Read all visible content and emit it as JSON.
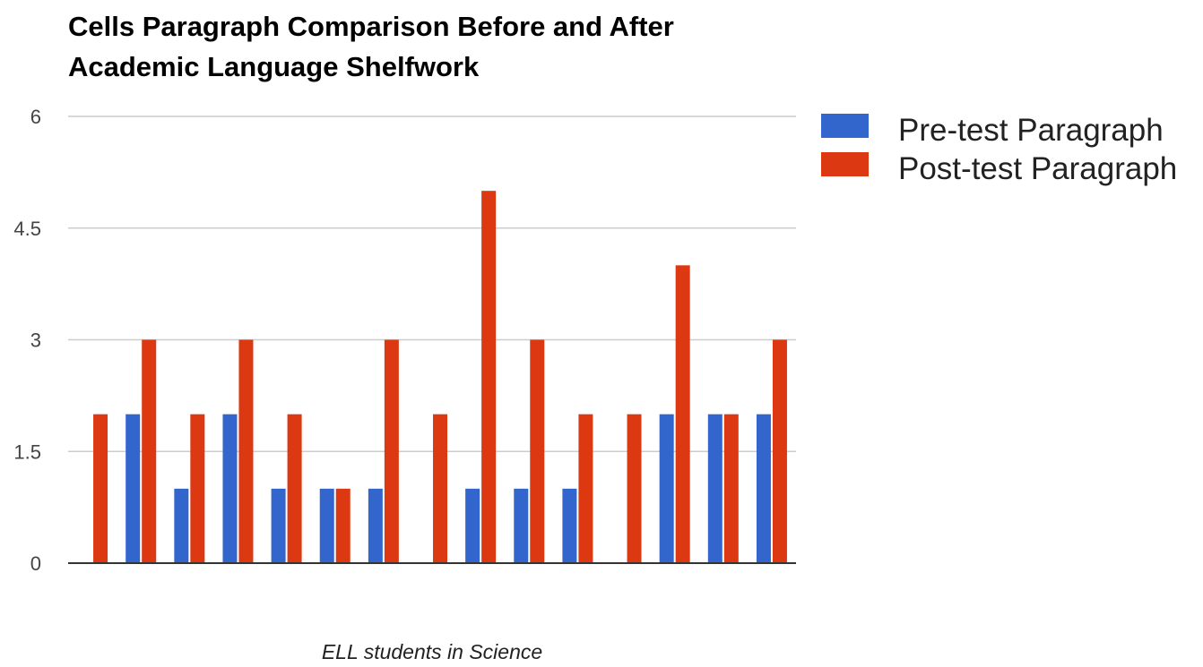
{
  "chart_data": {
    "type": "bar",
    "title_lines": [
      "Cells Paragraph Comparison Before and After",
      "Academic Language Shelfwork"
    ],
    "xlabel": "ELL students in Science",
    "ylabel": "",
    "ylim": [
      0,
      6
    ],
    "yticks": [
      {
        "value": 0,
        "label": "0"
      },
      {
        "value": 1.5,
        "label": "1.5"
      },
      {
        "value": 3,
        "label": "3"
      },
      {
        "value": 4.5,
        "label": "4.5"
      },
      {
        "value": 6,
        "label": "6"
      }
    ],
    "categories": [
      "",
      "",
      "",
      "",
      "",
      "",
      "",
      "",
      "",
      "",
      "",
      "",
      "",
      "",
      ""
    ],
    "grid": true,
    "legend_position": "right",
    "series": [
      {
        "name": "Pre-test Paragraph",
        "color": "#3366cc",
        "values": [
          0,
          2,
          1,
          2,
          1,
          1,
          1,
          0,
          1,
          1,
          1,
          0,
          2,
          2,
          2
        ]
      },
      {
        "name": "Post-test Paragraph",
        "color": "#dc3912",
        "values": [
          2,
          3,
          2,
          3,
          2,
          1,
          3,
          2,
          5,
          3,
          2,
          2,
          4,
          2,
          3
        ]
      }
    ]
  }
}
